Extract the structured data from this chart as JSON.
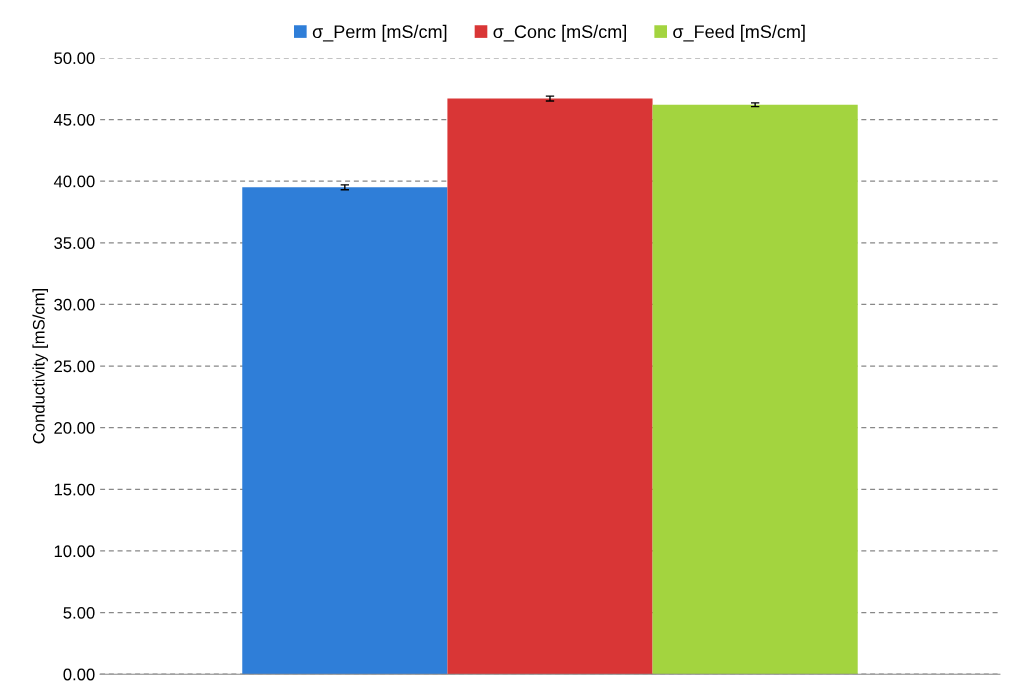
{
  "chart_data": {
    "type": "bar",
    "ylabel": "Conductivity [mS/cm]",
    "categories": [
      null
    ],
    "series": [
      {
        "name": "σ_Perm [mS/cm]",
        "color": "#2f7ed8",
        "values": [
          39.5
        ],
        "errors": [
          0.2
        ]
      },
      {
        "name": "σ_Conc [mS/cm]",
        "color": "#d93636",
        "values": [
          46.7
        ],
        "errors": [
          0.2
        ]
      },
      {
        "name": "σ_Feed [mS/cm]",
        "color": "#a3d43f",
        "values": [
          46.2
        ],
        "errors": [
          0.15
        ]
      }
    ],
    "ylim": [
      0,
      50
    ],
    "yticks": [
      {
        "value": 0,
        "label": "0.00"
      },
      {
        "value": 5,
        "label": "5.00"
      },
      {
        "value": 10,
        "label": "10.00"
      },
      {
        "value": 15,
        "label": "15.00"
      },
      {
        "value": 20,
        "label": "20.00"
      },
      {
        "value": 25,
        "label": "25.00"
      },
      {
        "value": 30,
        "label": "30.00"
      },
      {
        "value": 35,
        "label": "35.00"
      },
      {
        "value": 40,
        "label": "40.00"
      },
      {
        "value": 45,
        "label": "45.00"
      },
      {
        "value": 50,
        "label": "50.00"
      }
    ],
    "grid": "y",
    "legend": "top"
  }
}
